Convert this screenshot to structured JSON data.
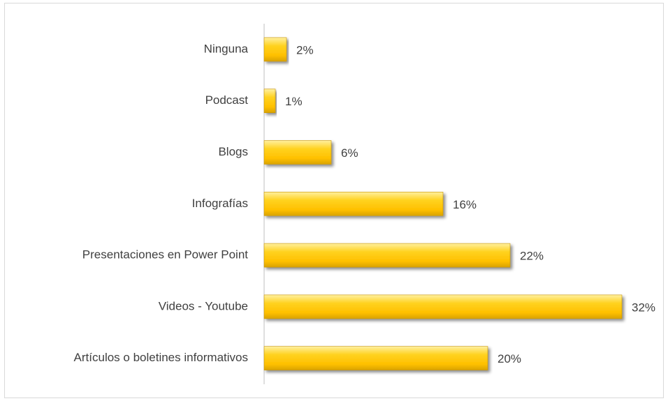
{
  "chart_data": {
    "type": "bar",
    "orientation": "horizontal",
    "categories": [
      "Ninguna",
      "Podcast",
      "Blogs",
      "Infografías",
      "Presentaciones en Power Point",
      "Videos - Youtube",
      "Artículos o boletines informativos"
    ],
    "values": [
      2,
      1,
      6,
      16,
      22,
      32,
      20
    ],
    "value_labels": [
      "2%",
      "1%",
      "6%",
      "16%",
      "22%",
      "32%",
      "20%"
    ],
    "color": "#ffc000",
    "xlim": [
      0,
      32
    ]
  }
}
